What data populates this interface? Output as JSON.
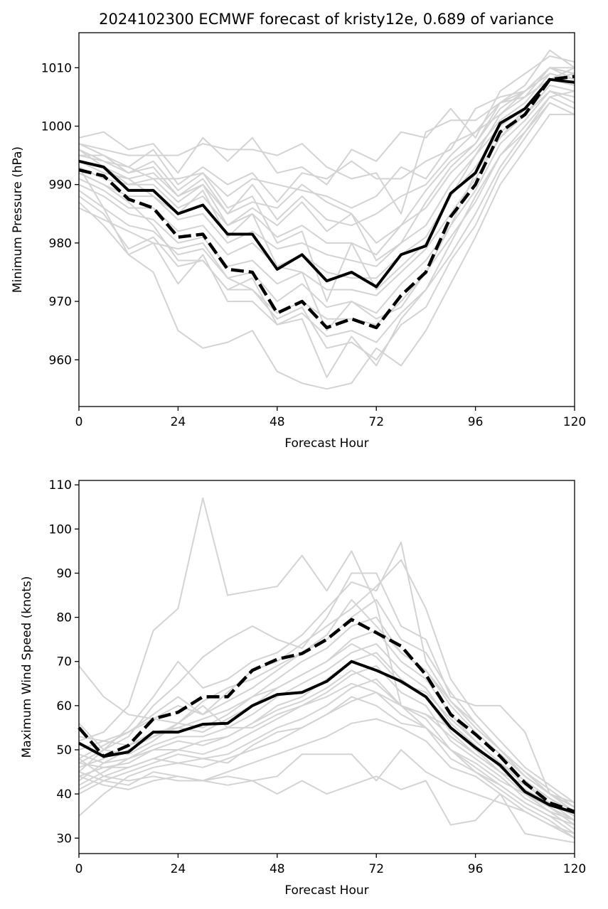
{
  "figure_title": "2024102300 ECMWF forecast of kristy12e, 0.689 of variance",
  "colors": {
    "ensemble": "#d3d3d3",
    "mean": "#000000"
  },
  "chart_data": [
    {
      "type": "line",
      "xlabel": "Forecast Hour",
      "ylabel": "Minimum Pressure (hPa)",
      "xlim": [
        0,
        120
      ],
      "ylim": [
        952,
        1016
      ],
      "xticks": [
        0,
        24,
        48,
        72,
        96,
        120
      ],
      "yticks": [
        960,
        970,
        980,
        990,
        1000,
        1010
      ],
      "grid": false,
      "x": [
        0,
        6,
        12,
        18,
        24,
        30,
        36,
        42,
        48,
        54,
        60,
        66,
        72,
        78,
        84,
        90,
        96,
        102,
        108,
        114,
        120
      ],
      "series": [
        {
          "style": "solid-black",
          "values": [
            994,
            993,
            989,
            989,
            985,
            986.5,
            981.5,
            981.5,
            975.5,
            978,
            973.5,
            975,
            972.5,
            978,
            979.5,
            988.5,
            992,
            1000.5,
            1003,
            1008,
            1007.5
          ]
        },
        {
          "style": "dashed-black",
          "values": [
            992.5,
            991.5,
            987.5,
            986,
            981,
            981.5,
            975.5,
            975,
            968,
            970,
            965.5,
            967,
            965.5,
            971,
            975,
            984.5,
            990,
            999,
            1002,
            1008,
            1008.5
          ]
        }
      ],
      "ensemble_members": [
        [
          998,
          999,
          996,
          997,
          992,
          998,
          994,
          998,
          992,
          993,
          990,
          996,
          994,
          999,
          998,
          1003,
          998,
          1006,
          1009,
          1012,
          1011
        ],
        [
          997,
          996,
          995,
          995,
          995,
          997,
          996,
          996,
          995,
          997,
          993,
          991,
          992,
          985,
          999,
          1001,
          1001,
          1004,
          1007,
          1013,
          1010
        ],
        [
          996,
          994,
          993,
          996,
          990,
          993,
          990,
          992,
          987,
          992,
          991,
          994,
          991,
          991,
          994,
          996,
          1003,
          1005,
          1006,
          1010,
          1009
        ],
        [
          995,
          995,
          993,
          991,
          991,
          992,
          988,
          991,
          990,
          989,
          988,
          986,
          988,
          993,
          991,
          997,
          999,
          1002,
          1006,
          1010,
          1008
        ],
        [
          994,
          992,
          991,
          992,
          988,
          990,
          985,
          990,
          984,
          988,
          984,
          983,
          985,
          988,
          990,
          995,
          999,
          1004,
          1005,
          1008,
          1009
        ],
        [
          993,
          991,
          990,
          990,
          986,
          988,
          983,
          985,
          981,
          983,
          980,
          980,
          978,
          983,
          986,
          992,
          996,
          1001,
          1004,
          1009,
          1008
        ],
        [
          992,
          990,
          988,
          988,
          984,
          985,
          980,
          982,
          979,
          980,
          978,
          977,
          976,
          980,
          983,
          990,
          995,
          1000,
          1003,
          1008,
          1007
        ],
        [
          991,
          989,
          986,
          986,
          982,
          983,
          978,
          980,
          976,
          978,
          975,
          974,
          974,
          978,
          981,
          988,
          993,
          999,
          1002,
          1007,
          1006
        ],
        [
          990,
          988,
          985,
          984,
          980,
          981,
          976,
          977,
          973,
          975,
          972,
          972,
          971,
          975,
          979,
          985,
          991,
          998,
          1002,
          1006,
          1005
        ],
        [
          989,
          986,
          983,
          982,
          978,
          979,
          974,
          975,
          970,
          973,
          969,
          970,
          968,
          973,
          977,
          983,
          989,
          997,
          1001,
          1006,
          1004
        ],
        [
          988,
          985,
          979,
          981,
          976,
          977,
          972,
          972,
          968,
          970,
          967,
          967,
          966,
          970,
          975,
          981,
          987,
          995,
          1000,
          1005,
          1003
        ],
        [
          987,
          983,
          978,
          980,
          973,
          978,
          970,
          970,
          966,
          968,
          964,
          965,
          963,
          968,
          972,
          978,
          985,
          993,
          999,
          1004,
          1002
        ],
        [
          986,
          984,
          982,
          980,
          979,
          980,
          974,
          972,
          967,
          969,
          962,
          963,
          960,
          966,
          969,
          977,
          983,
          992,
          998,
          1004,
          1002
        ],
        [
          993,
          986,
          978,
          975,
          965,
          962,
          963,
          965,
          958,
          956,
          955,
          956,
          962,
          959,
          965,
          973,
          981,
          990,
          996,
          1002,
          1002
        ],
        [
          992,
          990,
          987,
          983,
          977,
          977,
          972,
          974,
          966,
          967,
          957,
          964,
          959,
          967,
          972,
          980,
          988,
          995,
          999,
          1005,
          1006
        ],
        [
          996,
          993,
          991,
          988,
          985,
          989,
          981,
          985,
          976,
          975,
          965,
          970,
          967,
          969,
          975,
          983,
          992,
          998,
          1003,
          1008,
          1010
        ],
        [
          997,
          995,
          992,
          994,
          989,
          992,
          986,
          988,
          980,
          982,
          970,
          980,
          972,
          976,
          980,
          988,
          995,
          1002,
          1005,
          1010,
          1009
        ],
        [
          994,
          993,
          990,
          991,
          987,
          990,
          983,
          986,
          983,
          987,
          982,
          985,
          977,
          980,
          987,
          993,
          997,
          1003,
          1006,
          1009,
          1008
        ],
        [
          995,
          994,
          992,
          993,
          988,
          991,
          985,
          987,
          986,
          990,
          987,
          985,
          980,
          983,
          989,
          994,
          997,
          1004,
          1006,
          1010,
          1010
        ]
      ]
    },
    {
      "type": "line",
      "xlabel": "Forecast Hour",
      "ylabel": "Maximum Wind Speed (knots)",
      "xlim": [
        0,
        120
      ],
      "ylim": [
        26.5,
        111
      ],
      "xticks": [
        0,
        24,
        48,
        72,
        96,
        120
      ],
      "yticks": [
        30,
        40,
        50,
        60,
        70,
        80,
        90,
        100,
        110
      ],
      "grid": false,
      "x": [
        0,
        6,
        12,
        18,
        24,
        30,
        36,
        42,
        48,
        54,
        60,
        66,
        72,
        78,
        84,
        90,
        96,
        102,
        108,
        114,
        120
      ],
      "series": [
        {
          "style": "solid-black",
          "values": [
            51.5,
            48.5,
            49.5,
            54,
            54,
            55.8,
            56,
            60,
            62.5,
            63,
            65.5,
            70,
            68,
            65.5,
            62,
            55,
            50.5,
            46.5,
            40.5,
            37.5,
            35.8
          ]
        },
        {
          "style": "dashed-black",
          "values": [
            55,
            48.5,
            51,
            57,
            58.5,
            62,
            62,
            68,
            70.5,
            71.8,
            75,
            79.5,
            76.5,
            73.5,
            67,
            58,
            53.5,
            48.5,
            42.5,
            38,
            36
          ]
        }
      ],
      "ensemble_members": [
        [
          69,
          62,
          58,
          57,
          56,
          60,
          55,
          55,
          58,
          60,
          62,
          65,
          63,
          60,
          58,
          55,
          50,
          45,
          40,
          36,
          34
        ],
        [
          52,
          54,
          60,
          77,
          82,
          107,
          85,
          86,
          87,
          94,
          86,
          95,
          83,
          60,
          55,
          50,
          45,
          42,
          38,
          35,
          33
        ],
        [
          47,
          50,
          53,
          60,
          65,
          71,
          75,
          78,
          75,
          73,
          80,
          90,
          90,
          78,
          75,
          62,
          60,
          60,
          54,
          40,
          38
        ],
        [
          45,
          50,
          55,
          62,
          70,
          64,
          66,
          70,
          72,
          76,
          82,
          88,
          86,
          97,
          70,
          61,
          55,
          50,
          44,
          40,
          37
        ],
        [
          48,
          51,
          54,
          58,
          62,
          58,
          63,
          68,
          70,
          74,
          78,
          82,
          87,
          93,
          82,
          66,
          58,
          52,
          46,
          42,
          38
        ],
        [
          50,
          52,
          54,
          57,
          60,
          58,
          61,
          64,
          68,
          72,
          75,
          80,
          84,
          75,
          72,
          63,
          56,
          50,
          45,
          41,
          37
        ],
        [
          43,
          47,
          50,
          53,
          56,
          55,
          58,
          62,
          66,
          70,
          73,
          78,
          80,
          72,
          68,
          60,
          54,
          49,
          44,
          40,
          36
        ],
        [
          46,
          48,
          51,
          53,
          55,
          54,
          57,
          60,
          64,
          67,
          70,
          75,
          77,
          70,
          66,
          58,
          52,
          47,
          42,
          39,
          35
        ],
        [
          42,
          45,
          48,
          51,
          53,
          53,
          55,
          58,
          62,
          65,
          68,
          72,
          74,
          68,
          64,
          56,
          51,
          46,
          41,
          38,
          34
        ],
        [
          44,
          46,
          47,
          50,
          52,
          51,
          53,
          56,
          60,
          62,
          66,
          70,
          72,
          66,
          62,
          54,
          49,
          45,
          40,
          37,
          33
        ],
        [
          41,
          44,
          46,
          48,
          50,
          49,
          51,
          54,
          57,
          60,
          63,
          67,
          69,
          63,
          60,
          52,
          48,
          44,
          39,
          36,
          32
        ],
        [
          40,
          43,
          45,
          47,
          49,
          48,
          49,
          52,
          55,
          57,
          60,
          64,
          66,
          60,
          57,
          50,
          46,
          42,
          38,
          35,
          31
        ],
        [
          35,
          40,
          44,
          46,
          47,
          46,
          48,
          50,
          52,
          55,
          58,
          61,
          63,
          58,
          55,
          48,
          45,
          41,
          37,
          34,
          30
        ],
        [
          45,
          43,
          42,
          45,
          44,
          43,
          45,
          47,
          49,
          51,
          53,
          56,
          57,
          55,
          52,
          46,
          44,
          40,
          36,
          33,
          30
        ],
        [
          48,
          44,
          43,
          44,
          43,
          43,
          44,
          43,
          40,
          43,
          40,
          42,
          44,
          41,
          43,
          33,
          34,
          40,
          31,
          30,
          29
        ],
        [
          44,
          42,
          41,
          43,
          44,
          43,
          42,
          43,
          44,
          49,
          49,
          49,
          43,
          50,
          45,
          42,
          40,
          38,
          36,
          33,
          31
        ],
        [
          47,
          46,
          46,
          48,
          47,
          48,
          47,
          51,
          54,
          55,
          58,
          62,
          60,
          56,
          55,
          50,
          47,
          43,
          40,
          37,
          34
        ],
        [
          49,
          47,
          48,
          50,
          50,
          52,
          53,
          56,
          59,
          61,
          64,
          68,
          65,
          60,
          58,
          53,
          49,
          45,
          42,
          38,
          35
        ],
        [
          53,
          52,
          51,
          54,
          55,
          57,
          59,
          62,
          64,
          67,
          70,
          74,
          71,
          65,
          63,
          57,
          52,
          47,
          43,
          39,
          36
        ],
        [
          56,
          50,
          49,
          52,
          56,
          61,
          64,
          66,
          69,
          72,
          76,
          84,
          78,
          72,
          68,
          61,
          56,
          50,
          45,
          40,
          37
        ]
      ]
    }
  ]
}
